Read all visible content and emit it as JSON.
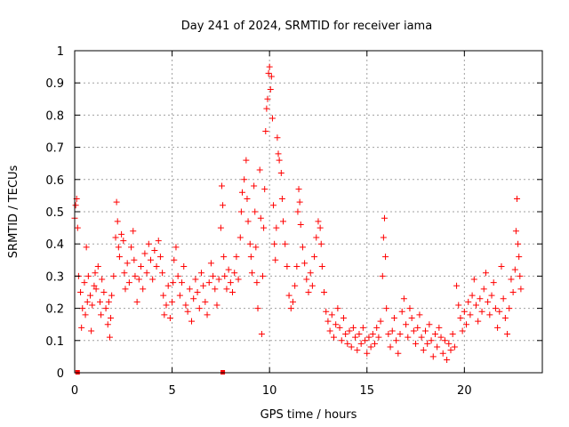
{
  "chart_data": {
    "type": "scatter",
    "title": "Day 241 of 2024, SRMTID for receiver iama",
    "xlabel": "GPS time / hours",
    "ylabel": "SRMTID / TECUs",
    "xlim": [
      0,
      24
    ],
    "ylim": [
      0,
      1
    ],
    "xticks": [
      0,
      5,
      10,
      15,
      20
    ],
    "yticks": [
      0,
      0.1,
      0.2,
      0.3,
      0.4,
      0.5,
      0.6,
      0.7,
      0.8,
      0.9,
      1
    ],
    "xtick_labels": [
      "0",
      "5",
      "10",
      "15",
      "20"
    ],
    "ytick_labels": [
      "0",
      "0.1",
      "0.2",
      "0.3",
      "0.4",
      "0.5",
      "0.6",
      "0.7",
      "0.8",
      "0.9",
      "1"
    ],
    "grid": true,
    "marker": "+",
    "color": "#ff0000",
    "series_points": [
      [
        0.0,
        0.48
      ],
      [
        0.05,
        0.52
      ],
      [
        0.1,
        0.54
      ],
      [
        0.15,
        0.45
      ],
      [
        0.2,
        0.3
      ],
      [
        0.3,
        0.25
      ],
      [
        0.35,
        0.14
      ],
      [
        0.4,
        0.2
      ],
      [
        0.5,
        0.28
      ],
      [
        0.55,
        0.18
      ],
      [
        0.6,
        0.39
      ],
      [
        0.65,
        0.22
      ],
      [
        0.7,
        0.3
      ],
      [
        0.8,
        0.24
      ],
      [
        0.85,
        0.13
      ],
      [
        0.9,
        0.21
      ],
      [
        1.0,
        0.27
      ],
      [
        1.05,
        0.31
      ],
      [
        1.1,
        0.26
      ],
      [
        1.2,
        0.33
      ],
      [
        1.3,
        0.22
      ],
      [
        1.35,
        0.18
      ],
      [
        1.4,
        0.29
      ],
      [
        1.5,
        0.25
      ],
      [
        1.6,
        0.2
      ],
      [
        1.7,
        0.15
      ],
      [
        1.75,
        0.22
      ],
      [
        1.8,
        0.11
      ],
      [
        1.85,
        0.17
      ],
      [
        1.9,
        0.24
      ],
      [
        2.0,
        0.3
      ],
      [
        2.1,
        0.42
      ],
      [
        2.15,
        0.53
      ],
      [
        2.2,
        0.47
      ],
      [
        2.25,
        0.39
      ],
      [
        2.3,
        0.36
      ],
      [
        2.4,
        0.43
      ],
      [
        2.5,
        0.41
      ],
      [
        2.55,
        0.31
      ],
      [
        2.6,
        0.26
      ],
      [
        2.7,
        0.34
      ],
      [
        2.8,
        0.28
      ],
      [
        2.9,
        0.39
      ],
      [
        3.0,
        0.44
      ],
      [
        3.05,
        0.35
      ],
      [
        3.1,
        0.3
      ],
      [
        3.2,
        0.22
      ],
      [
        3.3,
        0.29
      ],
      [
        3.4,
        0.33
      ],
      [
        3.5,
        0.26
      ],
      [
        3.6,
        0.37
      ],
      [
        3.7,
        0.31
      ],
      [
        3.8,
        0.4
      ],
      [
        3.9,
        0.35
      ],
      [
        4.0,
        0.29
      ],
      [
        4.1,
        0.38
      ],
      [
        4.2,
        0.33
      ],
      [
        4.3,
        0.41
      ],
      [
        4.4,
        0.36
      ],
      [
        4.5,
        0.31
      ],
      [
        4.55,
        0.24
      ],
      [
        4.6,
        0.18
      ],
      [
        4.7,
        0.21
      ],
      [
        4.8,
        0.27
      ],
      [
        4.9,
        0.17
      ],
      [
        5.0,
        0.22
      ],
      [
        5.05,
        0.28
      ],
      [
        5.1,
        0.35
      ],
      [
        5.2,
        0.39
      ],
      [
        5.3,
        0.3
      ],
      [
        5.4,
        0.24
      ],
      [
        5.5,
        0.28
      ],
      [
        5.6,
        0.33
      ],
      [
        5.7,
        0.21
      ],
      [
        5.8,
        0.19
      ],
      [
        5.9,
        0.26
      ],
      [
        6.0,
        0.16
      ],
      [
        6.1,
        0.23
      ],
      [
        6.2,
        0.29
      ],
      [
        6.3,
        0.25
      ],
      [
        6.4,
        0.2
      ],
      [
        6.5,
        0.31
      ],
      [
        6.6,
        0.27
      ],
      [
        6.7,
        0.22
      ],
      [
        6.8,
        0.18
      ],
      [
        6.9,
        0.28
      ],
      [
        7.0,
        0.34
      ],
      [
        7.1,
        0.3
      ],
      [
        7.2,
        0.26
      ],
      [
        7.3,
        0.21
      ],
      [
        7.4,
        0.29
      ],
      [
        7.5,
        0.45
      ],
      [
        7.55,
        0.58
      ],
      [
        7.6,
        0.52
      ],
      [
        7.65,
        0.36
      ],
      [
        7.7,
        0.3
      ],
      [
        7.8,
        0.26
      ],
      [
        7.9,
        0.32
      ],
      [
        8.0,
        0.28
      ],
      [
        8.1,
        0.25
      ],
      [
        8.2,
        0.31
      ],
      [
        8.3,
        0.36
      ],
      [
        8.4,
        0.29
      ],
      [
        8.5,
        0.42
      ],
      [
        8.55,
        0.5
      ],
      [
        8.6,
        0.56
      ],
      [
        8.7,
        0.6
      ],
      [
        8.8,
        0.66
      ],
      [
        8.85,
        0.54
      ],
      [
        8.9,
        0.47
      ],
      [
        9.0,
        0.4
      ],
      [
        9.05,
        0.36
      ],
      [
        9.1,
        0.31
      ],
      [
        9.2,
        0.58
      ],
      [
        9.25,
        0.5
      ],
      [
        9.3,
        0.39
      ],
      [
        9.35,
        0.28
      ],
      [
        9.4,
        0.2
      ],
      [
        9.5,
        0.63
      ],
      [
        9.55,
        0.48
      ],
      [
        9.6,
        0.12
      ],
      [
        9.65,
        0.3
      ],
      [
        9.7,
        0.45
      ],
      [
        9.75,
        0.57
      ],
      [
        9.8,
        0.75
      ],
      [
        9.85,
        0.82
      ],
      [
        9.9,
        0.85
      ],
      [
        9.95,
        0.93
      ],
      [
        10.0,
        0.95
      ],
      [
        10.05,
        0.88
      ],
      [
        10.1,
        0.92
      ],
      [
        10.15,
        0.79
      ],
      [
        10.2,
        0.52
      ],
      [
        10.25,
        0.4
      ],
      [
        10.3,
        0.35
      ],
      [
        10.35,
        0.45
      ],
      [
        10.4,
        0.73
      ],
      [
        10.45,
        0.68
      ],
      [
        10.5,
        0.66
      ],
      [
        10.6,
        0.62
      ],
      [
        10.65,
        0.54
      ],
      [
        10.7,
        0.47
      ],
      [
        10.8,
        0.4
      ],
      [
        10.9,
        0.33
      ],
      [
        11.0,
        0.24
      ],
      [
        11.1,
        0.2
      ],
      [
        11.2,
        0.22
      ],
      [
        11.3,
        0.27
      ],
      [
        11.4,
        0.33
      ],
      [
        11.45,
        0.5
      ],
      [
        11.5,
        0.57
      ],
      [
        11.55,
        0.53
      ],
      [
        11.6,
        0.46
      ],
      [
        11.7,
        0.39
      ],
      [
        11.8,
        0.34
      ],
      [
        11.9,
        0.29
      ],
      [
        12.0,
        0.25
      ],
      [
        12.1,
        0.31
      ],
      [
        12.2,
        0.27
      ],
      [
        12.3,
        0.36
      ],
      [
        12.4,
        0.42
      ],
      [
        12.5,
        0.47
      ],
      [
        12.6,
        0.45
      ],
      [
        12.65,
        0.4
      ],
      [
        12.7,
        0.33
      ],
      [
        12.8,
        0.25
      ],
      [
        12.9,
        0.19
      ],
      [
        13.0,
        0.16
      ],
      [
        13.1,
        0.13
      ],
      [
        13.2,
        0.18
      ],
      [
        13.3,
        0.11
      ],
      [
        13.4,
        0.15
      ],
      [
        13.5,
        0.2
      ],
      [
        13.6,
        0.14
      ],
      [
        13.7,
        0.1
      ],
      [
        13.8,
        0.17
      ],
      [
        13.9,
        0.12
      ],
      [
        14.0,
        0.09
      ],
      [
        14.1,
        0.13
      ],
      [
        14.2,
        0.08
      ],
      [
        14.3,
        0.14
      ],
      [
        14.4,
        0.11
      ],
      [
        14.5,
        0.07
      ],
      [
        14.6,
        0.12
      ],
      [
        14.7,
        0.09
      ],
      [
        14.8,
        0.14
      ],
      [
        14.9,
        0.1
      ],
      [
        15.0,
        0.06
      ],
      [
        15.1,
        0.11
      ],
      [
        15.2,
        0.08
      ],
      [
        15.3,
        0.12
      ],
      [
        15.4,
        0.09
      ],
      [
        15.5,
        0.14
      ],
      [
        15.6,
        0.11
      ],
      [
        15.7,
        0.16
      ],
      [
        15.8,
        0.3
      ],
      [
        15.85,
        0.42
      ],
      [
        15.9,
        0.48
      ],
      [
        15.95,
        0.36
      ],
      [
        16.0,
        0.2
      ],
      [
        16.1,
        0.12
      ],
      [
        16.2,
        0.08
      ],
      [
        16.3,
        0.13
      ],
      [
        16.4,
        0.17
      ],
      [
        16.5,
        0.1
      ],
      [
        16.6,
        0.06
      ],
      [
        16.7,
        0.12
      ],
      [
        16.8,
        0.19
      ],
      [
        16.9,
        0.23
      ],
      [
        17.0,
        0.15
      ],
      [
        17.1,
        0.11
      ],
      [
        17.2,
        0.2
      ],
      [
        17.3,
        0.17
      ],
      [
        17.4,
        0.13
      ],
      [
        17.5,
        0.09
      ],
      [
        17.6,
        0.14
      ],
      [
        17.7,
        0.18
      ],
      [
        17.8,
        0.11
      ],
      [
        17.9,
        0.07
      ],
      [
        18.0,
        0.13
      ],
      [
        18.1,
        0.09
      ],
      [
        18.2,
        0.15
      ],
      [
        18.3,
        0.1
      ],
      [
        18.4,
        0.05
      ],
      [
        18.5,
        0.12
      ],
      [
        18.6,
        0.08
      ],
      [
        18.7,
        0.14
      ],
      [
        18.8,
        0.11
      ],
      [
        18.9,
        0.06
      ],
      [
        19.0,
        0.1
      ],
      [
        19.1,
        0.04
      ],
      [
        19.2,
        0.09
      ],
      [
        19.3,
        0.07
      ],
      [
        19.4,
        0.12
      ],
      [
        19.5,
        0.08
      ],
      [
        19.6,
        0.27
      ],
      [
        19.7,
        0.21
      ],
      [
        19.8,
        0.17
      ],
      [
        19.9,
        0.13
      ],
      [
        20.0,
        0.19
      ],
      [
        20.1,
        0.15
      ],
      [
        20.2,
        0.22
      ],
      [
        20.3,
        0.18
      ],
      [
        20.4,
        0.24
      ],
      [
        20.5,
        0.29
      ],
      [
        20.6,
        0.21
      ],
      [
        20.7,
        0.16
      ],
      [
        20.8,
        0.23
      ],
      [
        20.9,
        0.19
      ],
      [
        21.0,
        0.26
      ],
      [
        21.1,
        0.31
      ],
      [
        21.2,
        0.22
      ],
      [
        21.3,
        0.18
      ],
      [
        21.4,
        0.24
      ],
      [
        21.5,
        0.28
      ],
      [
        21.6,
        0.2
      ],
      [
        21.7,
        0.14
      ],
      [
        21.8,
        0.19
      ],
      [
        21.9,
        0.33
      ],
      [
        22.0,
        0.23
      ],
      [
        22.1,
        0.17
      ],
      [
        22.2,
        0.12
      ],
      [
        22.3,
        0.2
      ],
      [
        22.4,
        0.29
      ],
      [
        22.5,
        0.25
      ],
      [
        22.6,
        0.32
      ],
      [
        22.65,
        0.44
      ],
      [
        22.7,
        0.54
      ],
      [
        22.75,
        0.4
      ],
      [
        22.8,
        0.36
      ],
      [
        22.85,
        0.3
      ],
      [
        22.9,
        0.26
      ]
    ],
    "baseline_markers": [
      [
        0.15,
        0.0
      ],
      [
        7.6,
        0.0
      ]
    ]
  }
}
